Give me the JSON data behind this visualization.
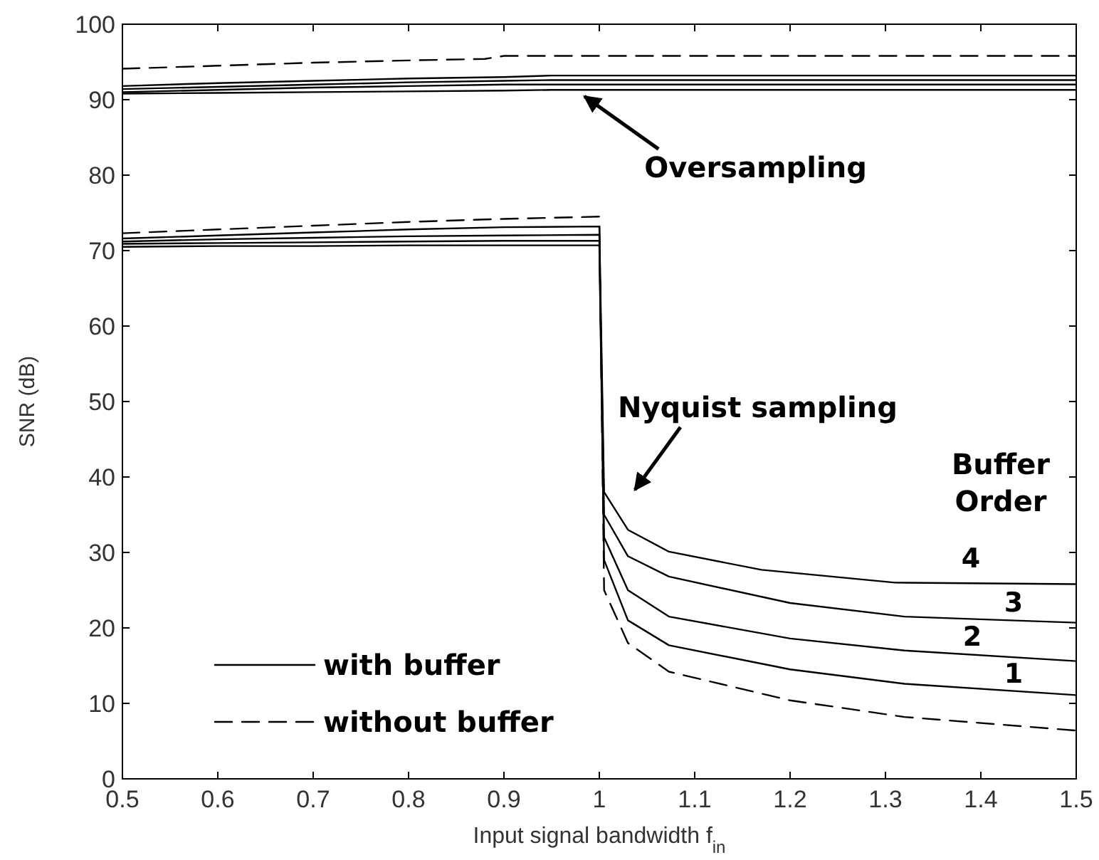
{
  "chart_data": {
    "type": "line",
    "xlabel": "Input signal bandwidth f$_{in}$",
    "ylabel": "SNR (dB)",
    "xlim": [
      0.5,
      1.5
    ],
    "ylim": [
      0,
      100
    ],
    "xticks": [
      0.5,
      0.6,
      0.7,
      0.8,
      0.9,
      1,
      1.1,
      1.2,
      1.3,
      1.4,
      1.5
    ],
    "yticks": [
      0,
      10,
      20,
      30,
      40,
      50,
      60,
      70,
      80,
      90,
      100
    ],
    "grid": false,
    "legend": "bottom left",
    "series": [
      {
        "color": "#000000",
        "line_style": "solid",
        "name": "with buffer",
        "x": [
          0.5,
          0.6,
          0.7,
          0.8,
          0.9,
          1.0,
          1.005,
          1.03,
          1.073,
          1.2,
          1.32,
          1.5
        ],
        "values": [
          70.5,
          70.6,
          70.6,
          70.7,
          70.7,
          70.7,
          29,
          21,
          17.7,
          14.5,
          12.6,
          11.1
        ]
      },
      {
        "color": "#000000",
        "line_style": "dashed",
        "name": "without buffer",
        "x": [
          0.5,
          0.6,
          0.7,
          0.8,
          0.88,
          0.9,
          1.0,
          1.2,
          1.5
        ],
        "values": [
          94.1,
          94.5,
          94.9,
          95.2,
          95.4,
          95.8,
          95.8,
          95.8,
          95.8
        ]
      },
      {
        "color": "#000000",
        "line_style": "solid",
        "x": [
          0.5,
          0.6,
          0.7,
          0.8,
          0.9,
          0.95,
          1.2,
          1.5
        ],
        "values": [
          91.8,
          92.2,
          92.5,
          92.8,
          93.0,
          93.2,
          93.2,
          93.2
        ]
      },
      {
        "color": "#000000",
        "line_style": "solid",
        "x": [
          0.5,
          0.6,
          0.7,
          0.8,
          0.9,
          0.95,
          1.2,
          1.5
        ],
        "values": [
          91.4,
          91.7,
          92.0,
          92.3,
          92.5,
          92.6,
          92.6,
          92.6
        ]
      },
      {
        "color": "#000000",
        "line_style": "solid",
        "x": [
          0.5,
          0.6,
          0.7,
          0.8,
          0.9,
          0.95,
          1.2,
          1.5
        ],
        "values": [
          91.0,
          91.3,
          91.6,
          91.8,
          92.0,
          92.0,
          92.0,
          92.0
        ]
      },
      {
        "color": "#000000",
        "line_style": "solid",
        "x": [
          0.5,
          0.6,
          0.7,
          0.8,
          0.9,
          0.95,
          1.2,
          1.5
        ],
        "values": [
          90.8,
          90.9,
          91.0,
          91.1,
          91.2,
          91.3,
          91.3,
          91.3
        ]
      },
      {
        "color": "#000000",
        "line_style": "dashed",
        "x": [
          0.5,
          0.6,
          0.7,
          0.8,
          0.9,
          1.0,
          1.005,
          1.03,
          1.073,
          1.2,
          1.32,
          1.5
        ],
        "values": [
          72.3,
          72.8,
          73.3,
          73.8,
          74.2,
          74.5,
          25,
          18,
          14.2,
          10.4,
          8.2,
          6.4
        ]
      },
      {
        "color": "#000000",
        "line_style": "solid",
        "x": [
          0.5,
          0.6,
          0.7,
          0.8,
          0.9,
          1.0,
          1.005,
          1.03,
          1.073,
          1.17,
          1.31,
          1.5
        ],
        "values": [
          71.6,
          72.0,
          72.4,
          72.8,
          73.1,
          73.2,
          38,
          33,
          30.1,
          27.7,
          26.0,
          25.8
        ]
      },
      {
        "color": "#000000",
        "line_style": "solid",
        "x": [
          0.5,
          0.6,
          0.7,
          0.8,
          0.9,
          1.0,
          1.005,
          1.03,
          1.073,
          1.2,
          1.32,
          1.5
        ],
        "values": [
          71.2,
          71.5,
          71.7,
          71.9,
          72.0,
          72.1,
          35,
          29.5,
          26.8,
          23.3,
          21.5,
          20.7
        ]
      },
      {
        "color": "#000000",
        "line_style": "solid",
        "x": [
          0.5,
          0.6,
          0.7,
          0.8,
          0.9,
          1.0,
          1.005,
          1.03,
          1.073,
          1.2,
          1.32,
          1.5
        ],
        "values": [
          70.9,
          71.0,
          71.1,
          71.2,
          71.3,
          71.3,
          32,
          25,
          21.5,
          18.6,
          17.0,
          15.6
        ]
      }
    ],
    "annotations": [
      {
        "text": "Oversampling",
        "x": 0.98,
        "y": 91
      },
      "Nyquist sampling",
      "Buffer Order",
      "4",
      "3",
      "2",
      "1"
    ]
  }
}
